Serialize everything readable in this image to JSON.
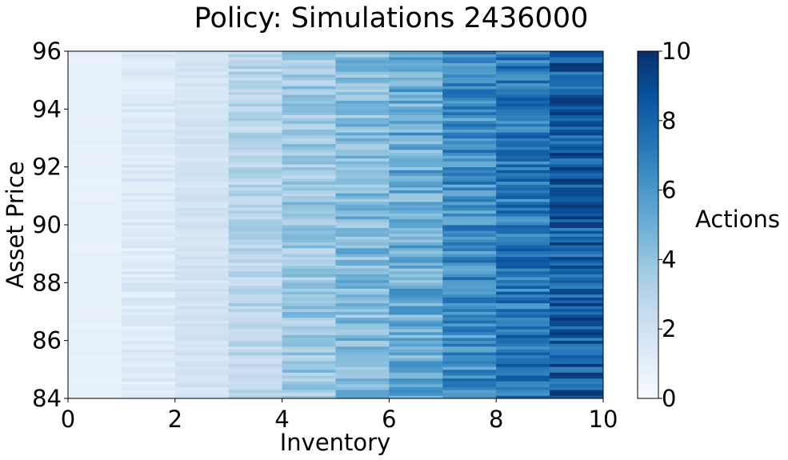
{
  "chart_data": {
    "type": "heatmap",
    "title": "Policy: Simulations 2436000",
    "xlabel": "Inventory",
    "ylabel": "Asset Price",
    "xlim": [
      0,
      10
    ],
    "ylim": [
      84,
      96
    ],
    "x_ticks": [
      "0",
      "2",
      "4",
      "6",
      "8",
      "10"
    ],
    "y_ticks": [
      "84",
      "86",
      "88",
      "90",
      "92",
      "94",
      "96"
    ],
    "colorbar": {
      "label": "Actions",
      "range": [
        0,
        10
      ],
      "ticks": [
        "0",
        "2",
        "4",
        "6",
        "8",
        "10"
      ],
      "colormap": "Blues"
    },
    "inventory_columns": [
      0,
      1,
      2,
      3,
      4,
      5,
      6,
      7,
      8,
      9
    ],
    "column_mean_action": [
      0.8,
      1.3,
      1.8,
      2.9,
      3.7,
      4.4,
      5.2,
      6.4,
      7.2,
      8.3
    ],
    "column_action_spread": [
      0.1,
      0.6,
      0.4,
      0.9,
      1.2,
      1.3,
      1.5,
      1.5,
      1.5,
      1.6
    ],
    "colors": {
      "low": "#f7fbff",
      "high": "#08306b"
    }
  }
}
